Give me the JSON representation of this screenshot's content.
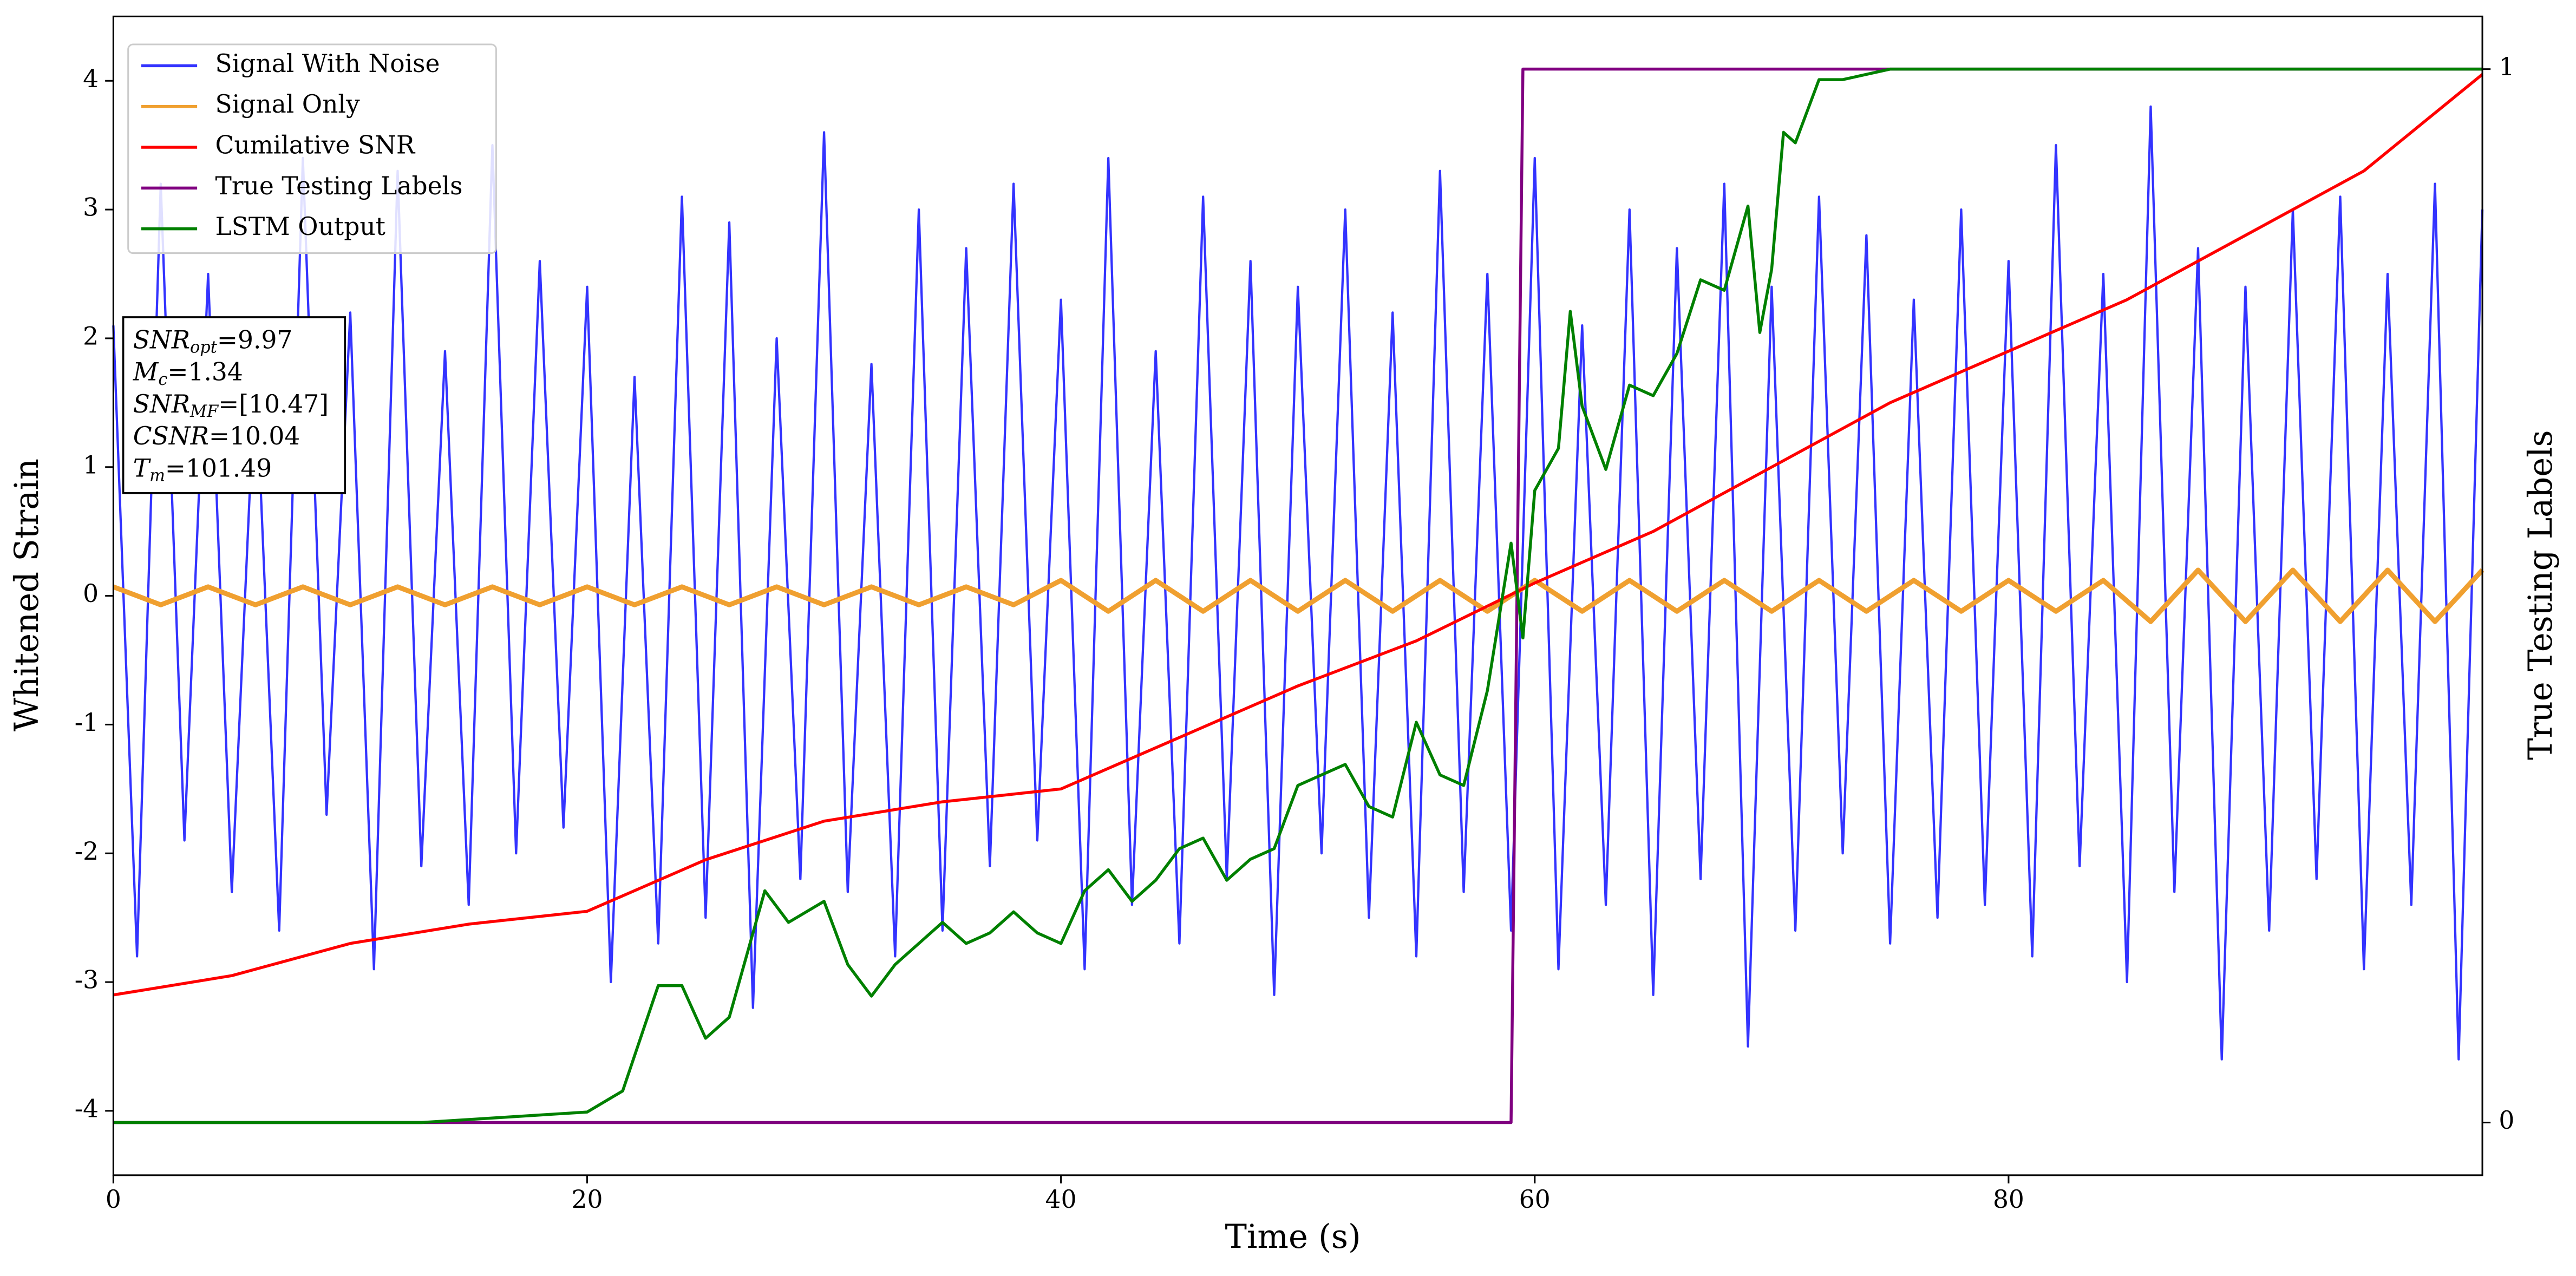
{
  "chart_data": {
    "type": "line",
    "xlabel": "Time (s)",
    "ylabel": "Whitened Strain",
    "y2label": "True Testing Labels",
    "xlim": [
      0,
      100
    ],
    "ylim": [
      -4.5,
      4.5
    ],
    "y2lim": [
      -0.05,
      1.05
    ],
    "xticks": [
      0,
      20,
      40,
      60,
      80
    ],
    "yticks": [
      -4,
      -3,
      -2,
      -1,
      0,
      1,
      2,
      3,
      4
    ],
    "y2ticks": [
      0,
      1
    ],
    "legend": "upper left",
    "annotation": [
      {
        "symbol": "SNR",
        "sub": "opt",
        "text": "=9.97"
      },
      {
        "symbol": "M",
        "sub": "c",
        "text": "=1.34"
      },
      {
        "symbol": "SNR",
        "sub": "MF",
        "text": "=[10.47]"
      },
      {
        "symbol": "CSNR",
        "text": "=10.04"
      },
      {
        "symbol": "T",
        "sub": "m",
        "text": "=101.49"
      }
    ],
    "series": [
      {
        "name": "Signal With Noise",
        "color": "#3333ff",
        "x": [
          0,
          1,
          2,
          3,
          4,
          5,
          6,
          7,
          8,
          9,
          10,
          11,
          12,
          13,
          14,
          15,
          16,
          17,
          18,
          19,
          20,
          21,
          22,
          23,
          24,
          25,
          26,
          27,
          28,
          29,
          30,
          31,
          32,
          33,
          34,
          35,
          36,
          37,
          38,
          39,
          40,
          41,
          42,
          43,
          44,
          45,
          46,
          47,
          48,
          49,
          50,
          51,
          52,
          53,
          54,
          55,
          56,
          57,
          58,
          59,
          60,
          61,
          62,
          63,
          64,
          65,
          66,
          67,
          68,
          69,
          70,
          71,
          72,
          73,
          74,
          75,
          76,
          77,
          78,
          79,
          80,
          81,
          82,
          83,
          84,
          85,
          86,
          87,
          88,
          89,
          90,
          91,
          92,
          93,
          94,
          95,
          96,
          97,
          98,
          99,
          100
        ],
        "values": [
          2.1,
          -2.8,
          3.2,
          -1.9,
          2.5,
          -2.3,
          1.8,
          -2.6,
          3.4,
          -1.7,
          2.2,
          -2.9,
          3.3,
          -2.1,
          1.9,
          -2.4,
          3.5,
          -2.0,
          2.6,
          -1.8,
          2.4,
          -3.0,
          1.7,
          -2.7,
          3.1,
          -2.5,
          2.9,
          -3.2,
          2.0,
          -2.2,
          3.6,
          -2.3,
          1.8,
          -2.8,
          3.0,
          -2.6,
          2.7,
          -2.1,
          3.2,
          -1.9,
          2.3,
          -2.9,
          3.4,
          -2.4,
          1.9,
          -2.7,
          3.1,
          -2.2,
          2.6,
          -3.1,
          2.4,
          -2.0,
          3.0,
          -2.5,
          2.2,
          -2.8,
          3.3,
          -2.3,
          2.5,
          -2.6,
          3.4,
          -2.9,
          2.1,
          -2.4,
          3.0,
          -3.1,
          2.7,
          -2.2,
          3.2,
          -3.5,
          2.4,
          -2.6,
          3.1,
          -2.0,
          2.8,
          -2.7,
          2.3,
          -2.5,
          3.0,
          -2.4,
          2.6,
          -2.8,
          3.5,
          -2.1,
          2.5,
          -3.0,
          3.8,
          -2.3,
          2.7,
          -3.6,
          2.4,
          -2.6,
          3.0,
          -2.2,
          3.1,
          -2.9,
          2.5,
          -2.4,
          3.2,
          -3.6,
          3.0
        ]
      },
      {
        "name": "Signal Only",
        "color": "#f0a030",
        "x": [
          0,
          2,
          4,
          6,
          8,
          10,
          12,
          14,
          16,
          18,
          20,
          22,
          24,
          26,
          28,
          30,
          32,
          34,
          36,
          38,
          40,
          42,
          44,
          46,
          48,
          50,
          52,
          54,
          56,
          58,
          60,
          62,
          64,
          66,
          68,
          70,
          72,
          74,
          76,
          78,
          80,
          82,
          84,
          86,
          88,
          90,
          92,
          94,
          96,
          98,
          100
        ],
        "values": [
          0.07,
          -0.07,
          0.07,
          -0.07,
          0.07,
          -0.07,
          0.07,
          -0.07,
          0.07,
          -0.07,
          0.07,
          -0.07,
          0.07,
          -0.07,
          0.07,
          -0.07,
          0.07,
          -0.07,
          0.07,
          -0.07,
          0.12,
          -0.12,
          0.12,
          -0.12,
          0.12,
          -0.12,
          0.12,
          -0.12,
          0.12,
          -0.12,
          0.12,
          -0.12,
          0.12,
          -0.12,
          0.12,
          -0.12,
          0.12,
          -0.12,
          0.12,
          -0.12,
          0.12,
          -0.12,
          0.12,
          -0.2,
          0.2,
          -0.2,
          0.2,
          -0.2,
          0.2,
          -0.2,
          0.2
        ]
      },
      {
        "name": "Cumilative SNR",
        "color": "#ff0000",
        "x": [
          0,
          5,
          10,
          15,
          20,
          25,
          30,
          35,
          40,
          45,
          50,
          55,
          60,
          65,
          70,
          75,
          80,
          85,
          90,
          95,
          100
        ],
        "values": [
          -3.1,
          -2.95,
          -2.7,
          -2.55,
          -2.45,
          -2.05,
          -1.75,
          -1.6,
          -1.5,
          -1.1,
          -0.7,
          -0.35,
          0.1,
          0.5,
          1.0,
          1.5,
          1.9,
          2.3,
          2.8,
          3.3,
          4.05
        ]
      },
      {
        "name": "True Testing Labels",
        "color": "#800080",
        "axis": "y2",
        "x": [
          0,
          59,
          59.5,
          100
        ],
        "values": [
          0,
          0,
          1,
          1
        ]
      },
      {
        "name": "LSTM Output",
        "color": "#008000",
        "axis": "y2",
        "x": [
          0,
          13,
          20,
          21.5,
          23,
          24,
          25,
          26,
          27,
          27.5,
          28.5,
          30,
          31,
          32,
          33,
          34,
          35,
          36,
          37,
          38,
          39,
          40,
          41,
          42,
          43,
          44,
          45,
          46,
          47,
          48,
          49,
          50,
          51,
          52,
          53,
          54,
          55,
          56,
          57,
          58,
          59,
          59.5,
          60,
          61,
          61.5,
          62,
          63,
          64,
          65,
          66,
          67,
          68,
          69,
          69.5,
          70,
          70.5,
          71,
          72,
          73,
          75,
          80,
          100
        ],
        "values": [
          0,
          0,
          0.01,
          0.03,
          0.13,
          0.13,
          0.08,
          0.1,
          0.18,
          0.22,
          0.19,
          0.21,
          0.15,
          0.12,
          0.15,
          0.17,
          0.19,
          0.17,
          0.18,
          0.2,
          0.18,
          0.17,
          0.22,
          0.24,
          0.21,
          0.23,
          0.26,
          0.27,
          0.23,
          0.25,
          0.26,
          0.32,
          0.33,
          0.34,
          0.3,
          0.29,
          0.38,
          0.33,
          0.32,
          0.41,
          0.55,
          0.46,
          0.6,
          0.64,
          0.77,
          0.68,
          0.62,
          0.7,
          0.69,
          0.73,
          0.8,
          0.79,
          0.87,
          0.75,
          0.81,
          0.94,
          0.93,
          0.99,
          0.99,
          1.0,
          1.0,
          1.0
        ]
      }
    ]
  }
}
